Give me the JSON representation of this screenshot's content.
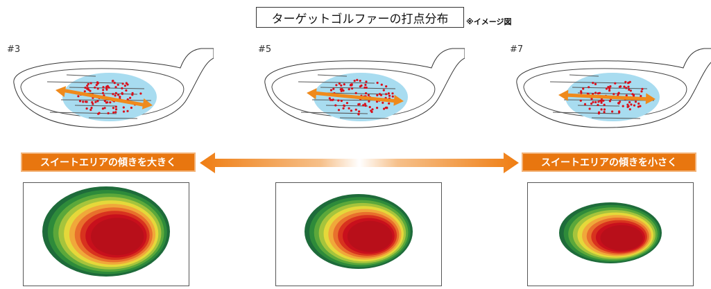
{
  "title": "ターゲットゴルファーの打点分布",
  "title_note": "※イメージ図",
  "clubs": [
    {
      "label": "#3"
    },
    {
      "label": "#5"
    },
    {
      "label": "#7"
    }
  ],
  "banners": {
    "left": "スイートエリアの傾きを大きく",
    "right": "スイートエリアの傾きを小さく"
  },
  "colors": {
    "banner": "#e8760f",
    "impact_area": "#a8dcf0",
    "impact_dot": "#d8101c",
    "arrow": "#ef8a1c",
    "heat_outer": "#1e6b3a",
    "heat_inner": "#c8101c"
  }
}
